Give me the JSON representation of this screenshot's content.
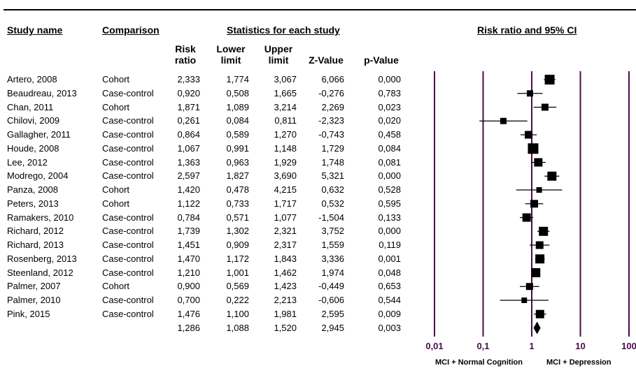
{
  "headers": {
    "study_name": "Study name",
    "comparison": "Comparison",
    "statistics": "Statistics for each study",
    "forest": "Risk ratio and 95% CI"
  },
  "columns": {
    "risk_ratio": [
      "Risk",
      "ratio"
    ],
    "lower": [
      "Lower",
      "limit"
    ],
    "upper": [
      "Upper",
      "limit"
    ],
    "z": "Z-Value",
    "p": "p-Value"
  },
  "footer": {
    "left": "MCI + Normal Cognition",
    "right": "MCI + Depression"
  },
  "chart_data": {
    "type": "forest",
    "x_scale": "log",
    "x_ticks": [
      0.01,
      0.1,
      1,
      10,
      100
    ],
    "x_tick_labels": [
      "0,01",
      "0,1",
      "1",
      "10",
      "100"
    ],
    "xlim": [
      0.01,
      100
    ],
    "rows": [
      {
        "study": "Artero, 2008",
        "comparison": "Cohort",
        "rr": "2,333",
        "lower": "1,774",
        "upper": "3,067",
        "z": "6,066",
        "p": "0,000",
        "rr_v": 2.333,
        "lo_v": 1.774,
        "hi_v": 3.067,
        "weight": 14
      },
      {
        "study": "Beaudreau, 2013",
        "comparison": "Case-control",
        "rr": "0,920",
        "lower": "0,508",
        "upper": "1,665",
        "z": "-0,276",
        "p": "0,783",
        "rr_v": 0.92,
        "lo_v": 0.508,
        "hi_v": 1.665,
        "weight": 9
      },
      {
        "study": "Chan, 2011",
        "comparison": "Cohort",
        "rr": "1,871",
        "lower": "1,089",
        "upper": "3,214",
        "z": "2,269",
        "p": "0,023",
        "rr_v": 1.871,
        "lo_v": 1.089,
        "hi_v": 3.214,
        "weight": 10
      },
      {
        "study": "Chilovi, 2009",
        "comparison": "Case-control",
        "rr": "0,261",
        "lower": "0,084",
        "upper": "0,811",
        "z": "-2,323",
        "p": "0,020",
        "rr_v": 0.261,
        "lo_v": 0.084,
        "hi_v": 0.811,
        "weight": 9
      },
      {
        "study": "Gallagher, 2011",
        "comparison": "Case-control",
        "rr": "0,864",
        "lower": "0,589",
        "upper": "1,270",
        "z": "-0,743",
        "p": "0,458",
        "rr_v": 0.864,
        "lo_v": 0.589,
        "hi_v": 1.27,
        "weight": 11
      },
      {
        "study": "Houde, 2008",
        "comparison": "Case-control",
        "rr": "1,067",
        "lower": "0,991",
        "upper": "1,148",
        "z": "1,729",
        "p": "0,084",
        "rr_v": 1.067,
        "lo_v": 0.991,
        "hi_v": 1.148,
        "weight": 15
      },
      {
        "study": "Lee, 2012",
        "comparison": "Case-control",
        "rr": "1,363",
        "lower": "0,963",
        "upper": "1,929",
        "z": "1,748",
        "p": "0,081",
        "rr_v": 1.363,
        "lo_v": 0.963,
        "hi_v": 1.929,
        "weight": 12
      },
      {
        "study": "Modrego, 2004",
        "comparison": "Case-control",
        "rr": "2,597",
        "lower": "1,827",
        "upper": "3,690",
        "z": "5,321",
        "p": "0,000",
        "rr_v": 2.597,
        "lo_v": 1.827,
        "hi_v": 3.69,
        "weight": 13
      },
      {
        "study": "Panza, 2008",
        "comparison": "Cohort",
        "rr": "1,420",
        "lower": "0,478",
        "upper": "4,215",
        "z": "0,632",
        "p": "0,528",
        "rr_v": 1.42,
        "lo_v": 0.478,
        "hi_v": 4.215,
        "weight": 8
      },
      {
        "study": "Peters, 2013",
        "comparison": "Cohort",
        "rr": "1,122",
        "lower": "0,733",
        "upper": "1,717",
        "z": "0,532",
        "p": "0,595",
        "rr_v": 1.122,
        "lo_v": 0.733,
        "hi_v": 1.717,
        "weight": 11
      },
      {
        "study": "Ramakers, 2010",
        "comparison": "Case-control",
        "rr": "0,784",
        "lower": "0,571",
        "upper": "1,077",
        "z": "-1,504",
        "p": "0,133",
        "rr_v": 0.784,
        "lo_v": 0.571,
        "hi_v": 1.077,
        "weight": 12
      },
      {
        "study": "Richard, 2012",
        "comparison": "Case-control",
        "rr": "1,739",
        "lower": "1,302",
        "upper": "2,321",
        "z": "3,752",
        "p": "0,000",
        "rr_v": 1.739,
        "lo_v": 1.302,
        "hi_v": 2.321,
        "weight": 13
      },
      {
        "study": "Richard, 2013",
        "comparison": "Case-control",
        "rr": "1,451",
        "lower": "0,909",
        "upper": "2,317",
        "z": "1,559",
        "p": "0,119",
        "rr_v": 1.451,
        "lo_v": 0.909,
        "hi_v": 2.317,
        "weight": 11
      },
      {
        "study": "Rosenberg, 2013",
        "comparison": "Case-control",
        "rr": "1,470",
        "lower": "1,172",
        "upper": "1,843",
        "z": "3,336",
        "p": "0,001",
        "rr_v": 1.47,
        "lo_v": 1.172,
        "hi_v": 1.843,
        "weight": 13
      },
      {
        "study": "Steenland, 2012",
        "comparison": "Case-control",
        "rr": "1,210",
        "lower": "1,001",
        "upper": "1,462",
        "z": "1,974",
        "p": "0,048",
        "rr_v": 1.21,
        "lo_v": 1.001,
        "hi_v": 1.462,
        "weight": 13
      },
      {
        "study": "Palmer, 2007",
        "comparison": "Cohort",
        "rr": "0,900",
        "lower": "0,569",
        "upper": "1,423",
        "z": "-0,449",
        "p": "0,653",
        "rr_v": 0.9,
        "lo_v": 0.569,
        "hi_v": 1.423,
        "weight": 10
      },
      {
        "study": "Palmer, 2010",
        "comparison": "Case-control",
        "rr": "0,700",
        "lower": "0,222",
        "upper": "2,213",
        "z": "-0,606",
        "p": "0,544",
        "rr_v": 0.7,
        "lo_v": 0.222,
        "hi_v": 2.213,
        "weight": 8
      },
      {
        "study": "Pink, 2015",
        "comparison": "Case-control",
        "rr": "1,476",
        "lower": "1,100",
        "upper": "1,981",
        "z": "2,595",
        "p": "0,009",
        "rr_v": 1.476,
        "lo_v": 1.1,
        "hi_v": 1.981,
        "weight": 12
      }
    ],
    "summary": {
      "rr": "1,286",
      "lower": "1,088",
      "upper": "1,520",
      "z": "2,945",
      "p": "0,003",
      "rr_v": 1.286,
      "lo_v": 1.088,
      "hi_v": 1.52
    }
  }
}
